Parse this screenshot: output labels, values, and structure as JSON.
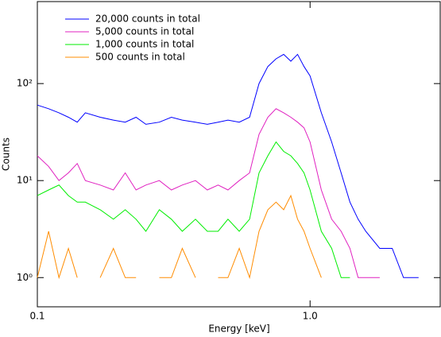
{
  "chart_data": {
    "type": "line",
    "x_label": "Energy [keV]",
    "y_label": "Counts",
    "x": [
      0.1,
      0.11,
      0.12,
      0.13,
      0.14,
      0.15,
      0.17,
      0.19,
      0.21,
      0.23,
      0.25,
      0.28,
      0.31,
      0.34,
      0.38,
      0.42,
      0.46,
      0.5,
      0.55,
      0.6,
      0.65,
      0.7,
      0.75,
      0.8,
      0.85,
      0.9,
      0.95,
      1.0,
      1.1,
      1.2,
      1.3,
      1.4,
      1.5,
      1.6,
      1.8,
      2.0,
      2.2,
      2.5,
      2.8
    ],
    "series": [
      {
        "name": "20,000 counts in total",
        "color": "#0000ff",
        "values": [
          60,
          55,
          50,
          45,
          40,
          50,
          45,
          42,
          40,
          45,
          38,
          40,
          45,
          42,
          40,
          38,
          40,
          42,
          40,
          45,
          100,
          150,
          180,
          200,
          170,
          200,
          150,
          120,
          50,
          25,
          12,
          6,
          4,
          3,
          2,
          2,
          1,
          1,
          null
        ]
      },
      {
        "name": "5,000 counts in total",
        "color": "#e020c0",
        "values": [
          18,
          14,
          10,
          12,
          15,
          10,
          9,
          8,
          12,
          8,
          9,
          10,
          8,
          9,
          10,
          8,
          9,
          8,
          10,
          12,
          30,
          45,
          55,
          50,
          45,
          40,
          35,
          25,
          8,
          4,
          3,
          2,
          1,
          1,
          1,
          null,
          1,
          null,
          null
        ]
      },
      {
        "name": "1,000 counts in total",
        "color": "#00ee00",
        "values": [
          7,
          8,
          9,
          7,
          6,
          6,
          5,
          4,
          5,
          4,
          3,
          5,
          4,
          3,
          4,
          3,
          3,
          4,
          3,
          4,
          12,
          18,
          25,
          20,
          18,
          15,
          12,
          8,
          3,
          2,
          1,
          1,
          null,
          1,
          null,
          null,
          null,
          null,
          null
        ]
      },
      {
        "name": "500 counts in total",
        "color": "#ff8c00",
        "values": [
          1,
          3,
          1,
          2,
          1,
          null,
          1,
          2,
          1,
          1,
          null,
          1,
          1,
          2,
          1,
          null,
          1,
          1,
          2,
          1,
          3,
          5,
          6,
          5,
          7,
          4,
          3,
          2,
          1,
          null,
          1,
          null,
          null,
          null,
          null,
          null,
          null,
          null,
          null
        ]
      }
    ],
    "log_x": true,
    "log_y": true,
    "xlim": [
      0.1,
      3.0
    ],
    "ylim": [
      0.5,
      700
    ],
    "xticks": [
      0.1,
      {
        "value": 1,
        "label": "1.0"
      }
    ],
    "yticks": [
      {
        "value": 1,
        "label": "10⁰"
      },
      {
        "value": 10,
        "label": "10¹"
      },
      {
        "value": 100,
        "label": "10²"
      }
    ],
    "legend": "upper left"
  }
}
